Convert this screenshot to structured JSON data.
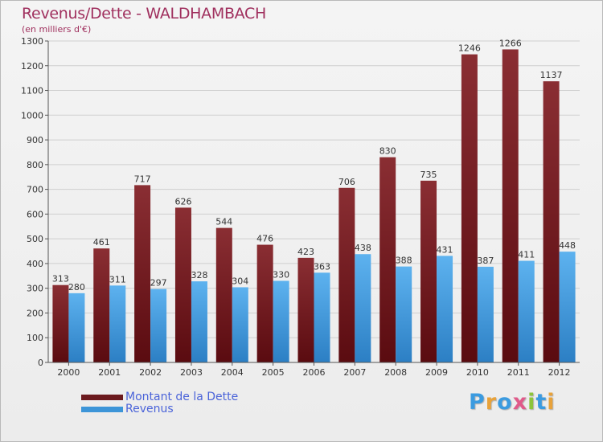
{
  "chart_data": {
    "type": "bar",
    "title": "Revenus/Dette - WALDHAMBACH",
    "subtitle": "(en milliers d'€)",
    "categories": [
      "2000",
      "2001",
      "2002",
      "2003",
      "2004",
      "2005",
      "2006",
      "2007",
      "2008",
      "2009",
      "2010",
      "2011",
      "2012"
    ],
    "series": [
      {
        "name": "Montant de la Dette",
        "color": "#6b1a1e",
        "values": [
          313,
          461,
          717,
          626,
          544,
          476,
          423,
          706,
          830,
          735,
          1246,
          1266,
          1137
        ]
      },
      {
        "name": "Revenus",
        "color": "#3d95d8",
        "values": [
          280,
          311,
          297,
          328,
          304,
          330,
          363,
          438,
          388,
          431,
          387,
          411,
          448
        ]
      }
    ],
    "ylim": [
      0,
      1300
    ],
    "yticks": [
      0,
      100,
      200,
      300,
      400,
      500,
      600,
      700,
      800,
      900,
      1000,
      1100,
      1200,
      1300
    ],
    "grid": true,
    "legend_position": "bottom-left"
  },
  "logo": {
    "text": "Proxiti"
  }
}
